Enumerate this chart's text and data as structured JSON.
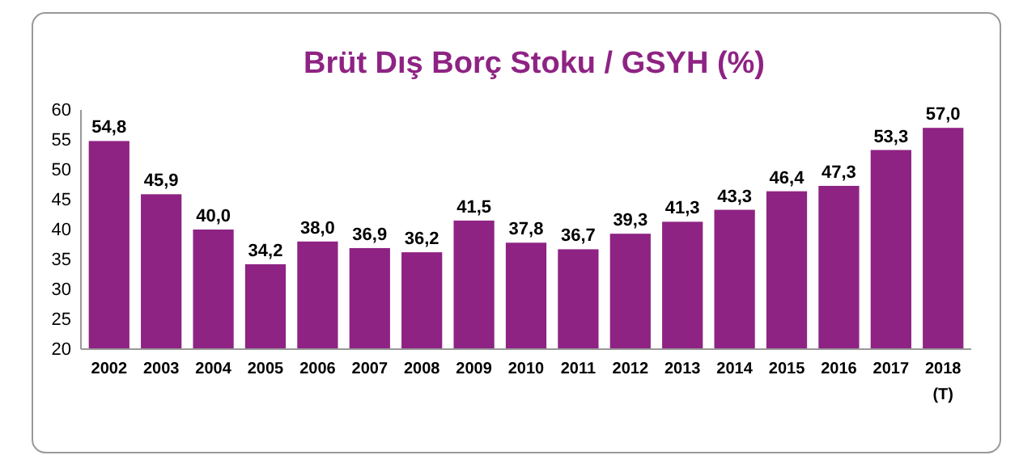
{
  "chart_data": {
    "type": "bar",
    "title": "Brüt Dış Borç Stoku / GSYH (%)",
    "categories": [
      "2002",
      "2003",
      "2004",
      "2005",
      "2006",
      "2007",
      "2008",
      "2009",
      "2010",
      "2011",
      "2012",
      "2013",
      "2014",
      "2015",
      "2016",
      "2017",
      "2018\n(T)"
    ],
    "values": [
      54.8,
      45.9,
      40.0,
      34.2,
      38.0,
      36.9,
      36.2,
      41.5,
      37.8,
      36.7,
      39.3,
      41.3,
      43.3,
      46.4,
      47.3,
      53.3,
      57.0
    ],
    "value_labels": [
      "54,8",
      "45,9",
      "40,0",
      "34,2",
      "38,0",
      "36,9",
      "36,2",
      "41,5",
      "37,8",
      "36,7",
      "39,3",
      "41,3",
      "43,3",
      "46,4",
      "47,3",
      "53,3",
      "57,0"
    ],
    "color": "#8e2383",
    "ylim": [
      20,
      60
    ],
    "yticks": [
      20,
      25,
      30,
      35,
      40,
      45,
      50,
      55,
      60
    ],
    "grid": false
  }
}
